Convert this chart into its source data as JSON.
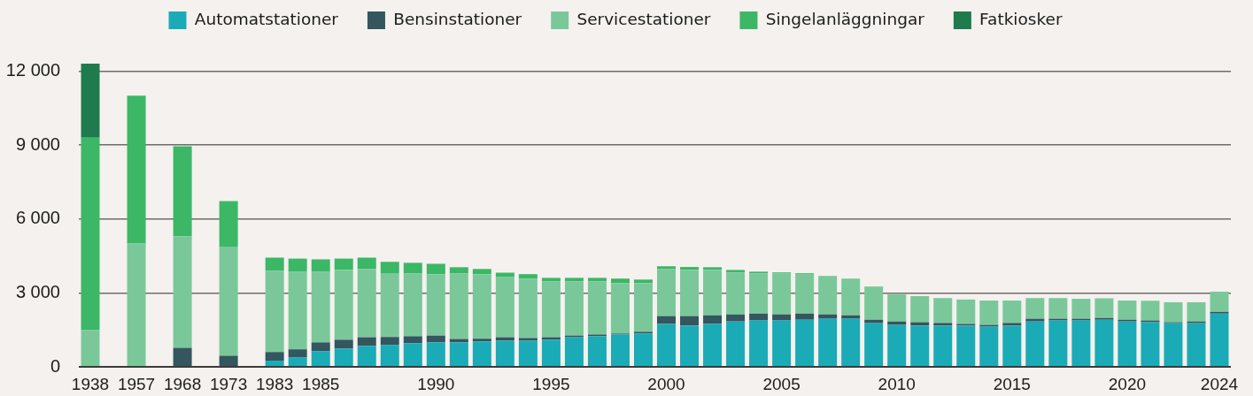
{
  "chart_data": {
    "type": "bar",
    "stacked": true,
    "legend": "top",
    "grid": "y",
    "categories": [
      "1938",
      null,
      "1957",
      null,
      "1968",
      null,
      "1973",
      null,
      "1983",
      null,
      "1985",
      null,
      null,
      null,
      null,
      "1990",
      null,
      null,
      null,
      null,
      "1995",
      null,
      null,
      null,
      null,
      "2000",
      null,
      null,
      null,
      null,
      "2005",
      null,
      null,
      null,
      null,
      "2010",
      null,
      null,
      null,
      null,
      "2015",
      null,
      null,
      null,
      null,
      "2020",
      null,
      null,
      null,
      "2024"
    ],
    "ylim": [
      0,
      12300
    ],
    "yticks": [
      0,
      {
        "value": 3000,
        "label": "3 000"
      },
      {
        "value": 6000,
        "label": "6 000"
      },
      {
        "value": 9000,
        "label": "9 000"
      },
      {
        "value": 12000,
        "label": "12 000"
      }
    ],
    "series": [
      {
        "name": "Automatstationer",
        "color": "#1aabb7",
        "values": [
          null,
          null,
          null,
          null,
          null,
          null,
          null,
          null,
          250,
          390,
          640,
          740,
          850,
          890,
          960,
          990,
          990,
          1030,
          1060,
          1060,
          1100,
          1200,
          1240,
          1310,
          1350,
          1740,
          1670,
          1740,
          1840,
          1880,
          1880,
          1910,
          1950,
          1950,
          1770,
          1700,
          1670,
          1670,
          1670,
          1630,
          1670,
          1840,
          1880,
          1880,
          1910,
          1840,
          1810,
          1770,
          1770,
          2160
        ]
      },
      {
        "name": "Bensinstationer",
        "color": "#33565f",
        "values": [
          null,
          null,
          null,
          null,
          770,
          null,
          450,
          null,
          350,
          320,
          350,
          360,
          350,
          320,
          280,
          280,
          140,
          110,
          140,
          110,
          100,
          70,
          70,
          40,
          70,
          320,
          390,
          350,
          280,
          280,
          250,
          250,
          180,
          140,
          140,
          140,
          140,
          110,
          70,
          70,
          110,
          110,
          70,
          70,
          70,
          70,
          70,
          40,
          70,
          70
        ]
      },
      {
        "name": "Servicestationer",
        "color": "#7ac89a",
        "values": [
          1500,
          null,
          5000,
          null,
          4530,
          null,
          4430,
          null,
          3300,
          3150,
          2870,
          2830,
          2770,
          2590,
          2550,
          2480,
          2660,
          2620,
          2440,
          2410,
          2270,
          2200,
          2160,
          2050,
          1980,
          1910,
          1880,
          1840,
          1700,
          1630,
          1660,
          1610,
          1530,
          1490,
          1320,
          1100,
          1060,
          1010,
          990,
          990,
          910,
          840,
          840,
          810,
          800,
          780,
          800,
          810,
          780,
          820
        ]
      },
      {
        "name": "Singelanläggningar",
        "color": "#3bb766",
        "values": [
          7800,
          null,
          6000,
          null,
          3650,
          null,
          1840,
          null,
          530,
          530,
          500,
          460,
          460,
          460,
          430,
          430,
          250,
          210,
          180,
          180,
          140,
          140,
          140,
          180,
          140,
          110,
          110,
          110,
          110,
          70,
          40,
          30,
          20,
          null,
          20,
          null,
          null,
          null,
          null,
          null,
          null,
          null,
          null,
          null,
          null,
          null,
          null,
          null,
          null,
          null
        ]
      },
      {
        "name": "Fatkiosker",
        "color": "#1f7a4e",
        "values": [
          3000,
          null,
          null,
          null,
          null,
          null,
          null,
          null,
          null,
          null,
          null,
          null,
          null,
          null,
          null,
          null,
          null,
          null,
          null,
          null,
          null,
          null,
          null,
          null,
          null,
          null,
          null,
          null,
          null,
          null,
          null,
          null,
          null,
          null,
          null,
          null,
          null,
          null,
          null,
          null,
          null,
          null,
          null,
          null,
          null,
          null,
          null,
          null,
          null,
          null
        ]
      }
    ]
  }
}
